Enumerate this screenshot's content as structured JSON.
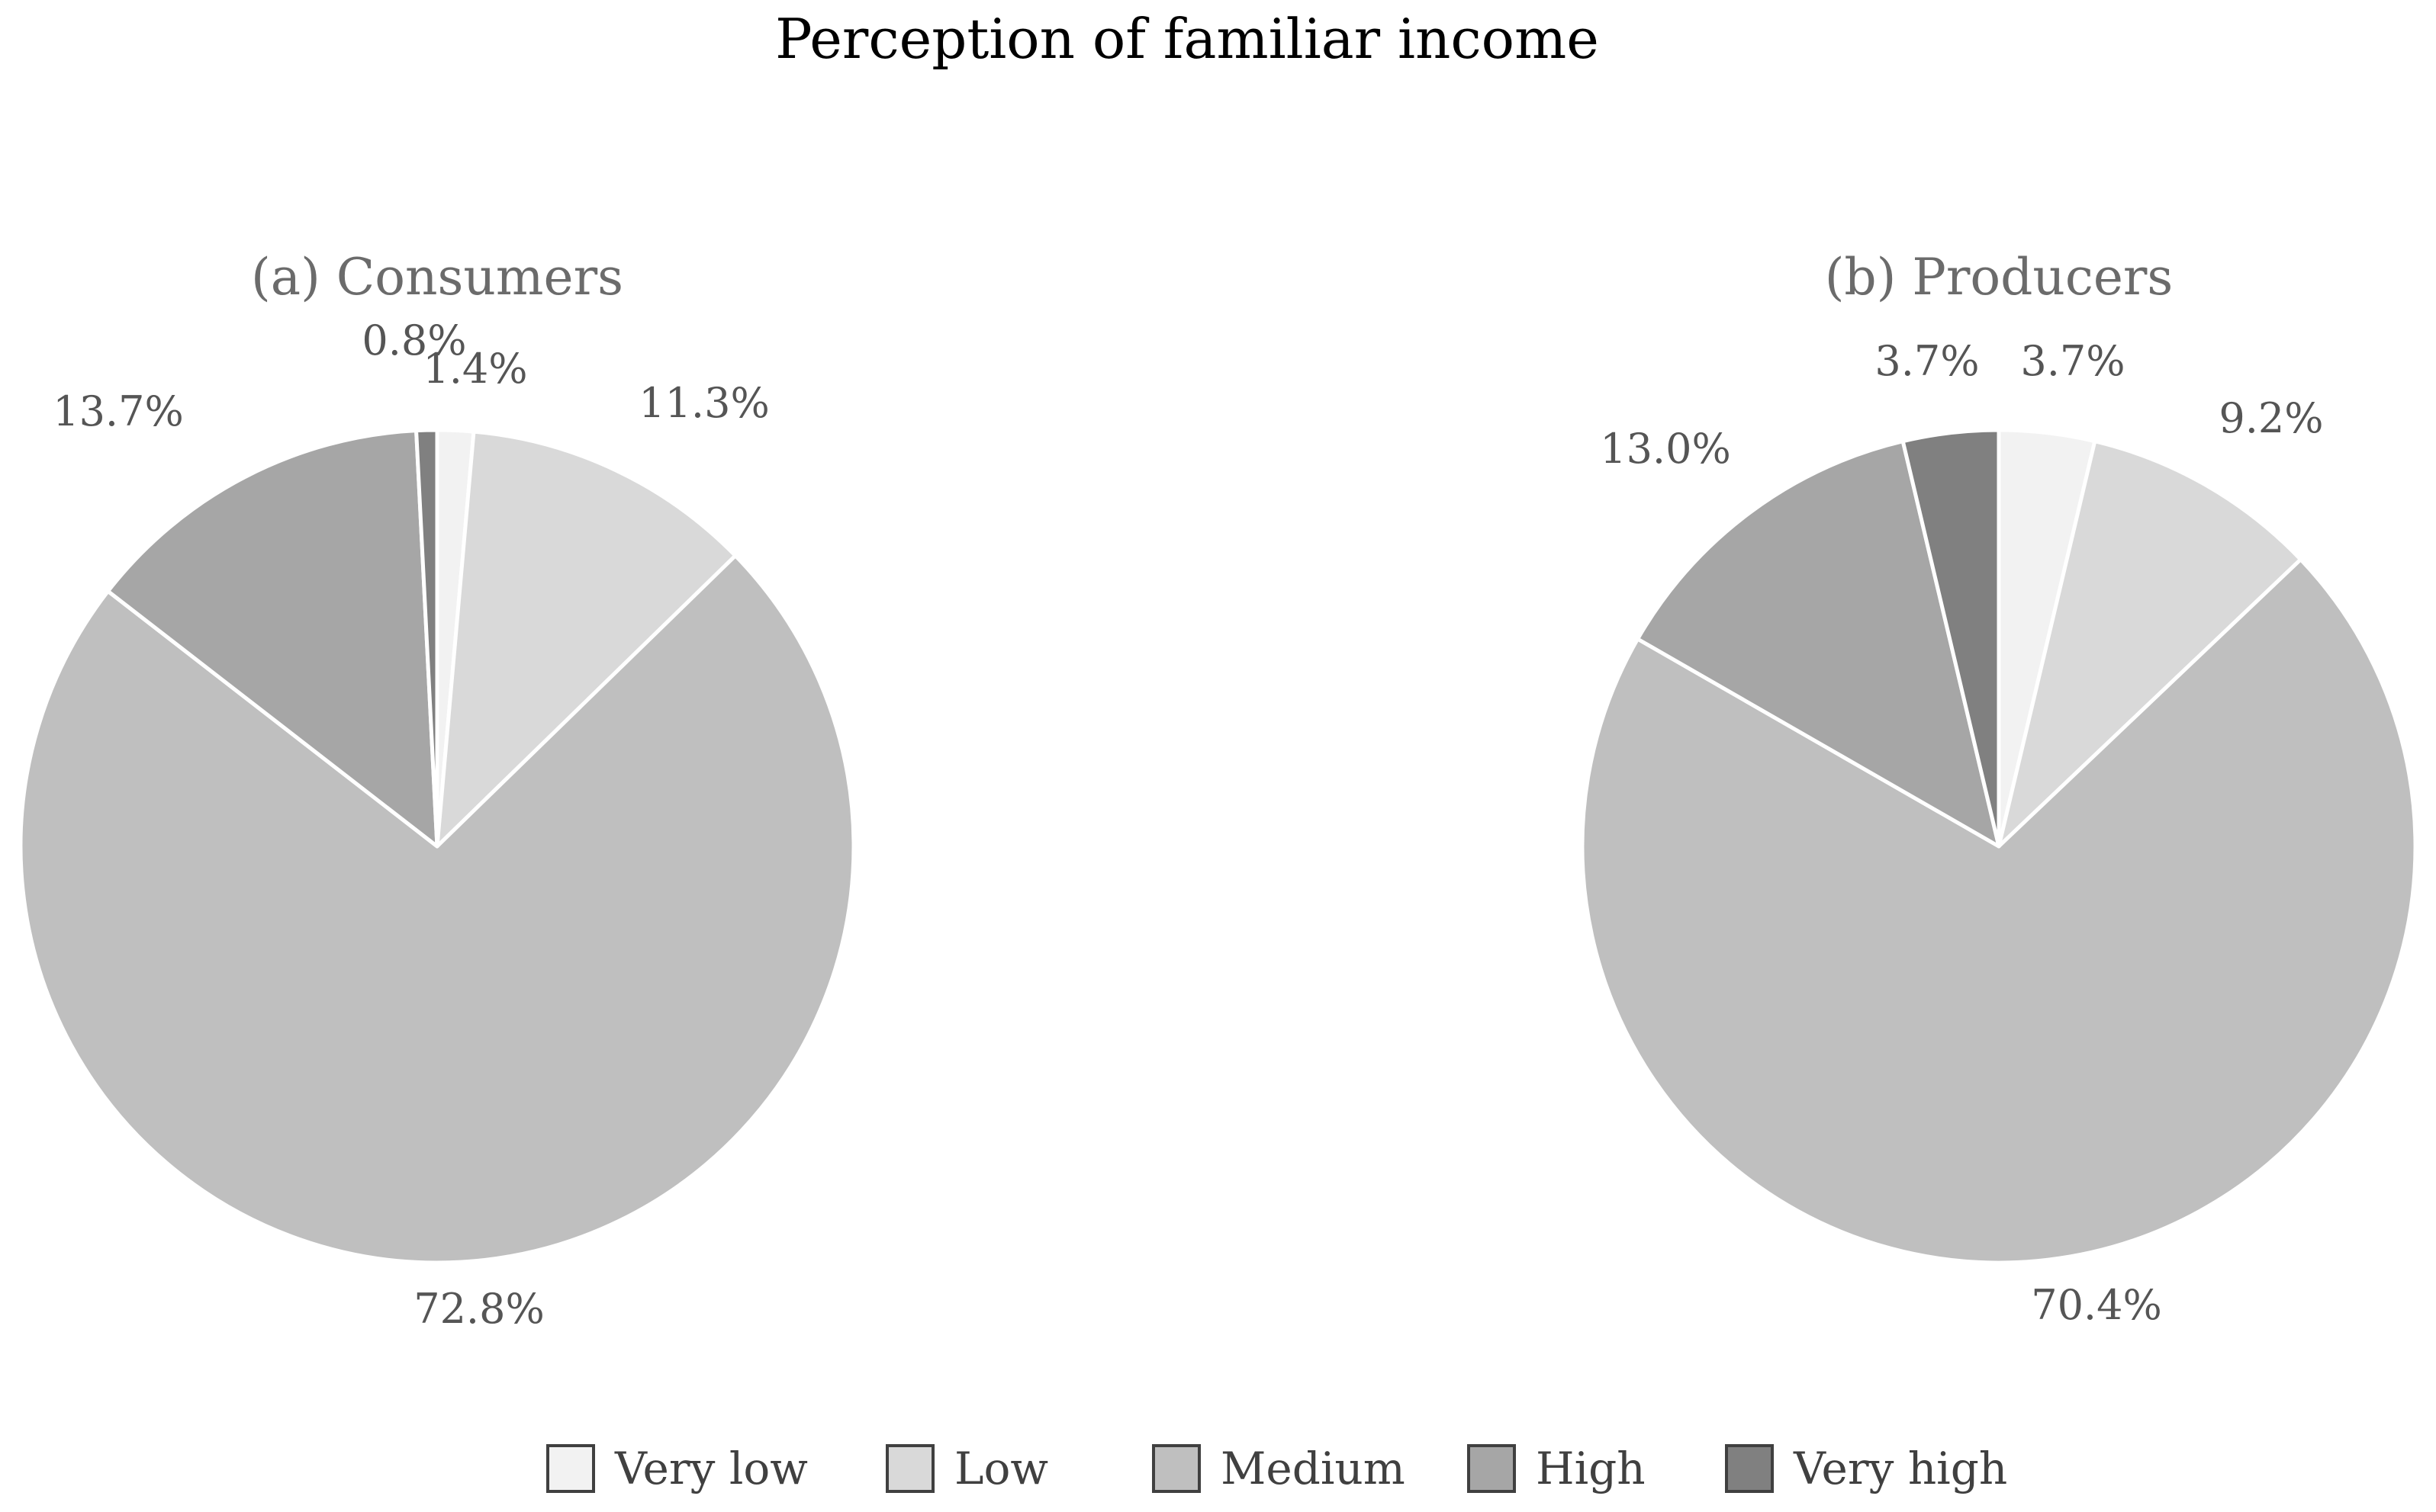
{
  "title": "Perception of familiar income",
  "colors": {
    "Very low": "#f2f2f2",
    "Low": "#d9d9d9",
    "Medium": "#bfbfbf",
    "High": "#a6a6a6",
    "Very high": "#808080",
    "slice_border": "#ffffff",
    "legend_swatch_border": "#404040"
  },
  "legend": {
    "position": "bottom",
    "items": [
      "Very low",
      "Low",
      "Medium",
      "High",
      "Very high"
    ]
  },
  "chart_data": [
    {
      "type": "pie",
      "subtitle": "(a) Consumers",
      "categories": [
        "Very low",
        "Low",
        "Medium",
        "High",
        "Very high"
      ],
      "values": [
        1.4,
        11.3,
        72.8,
        13.7,
        0.8
      ],
      "labels": [
        "1.4%",
        "11.3%",
        "72.8%",
        "13.7%",
        "0.8%"
      ],
      "start_angle_deg": 0,
      "direction": "clockwise"
    },
    {
      "type": "pie",
      "subtitle": "(b) Producers",
      "categories": [
        "Very low",
        "Low",
        "Medium",
        "High",
        "Very high"
      ],
      "values": [
        3.7,
        9.2,
        70.4,
        13.0,
        3.7
      ],
      "labels": [
        "3.7%",
        "9.2%",
        "70.4%",
        "13.0%",
        "3.7%"
      ],
      "start_angle_deg": 0,
      "direction": "clockwise"
    }
  ]
}
